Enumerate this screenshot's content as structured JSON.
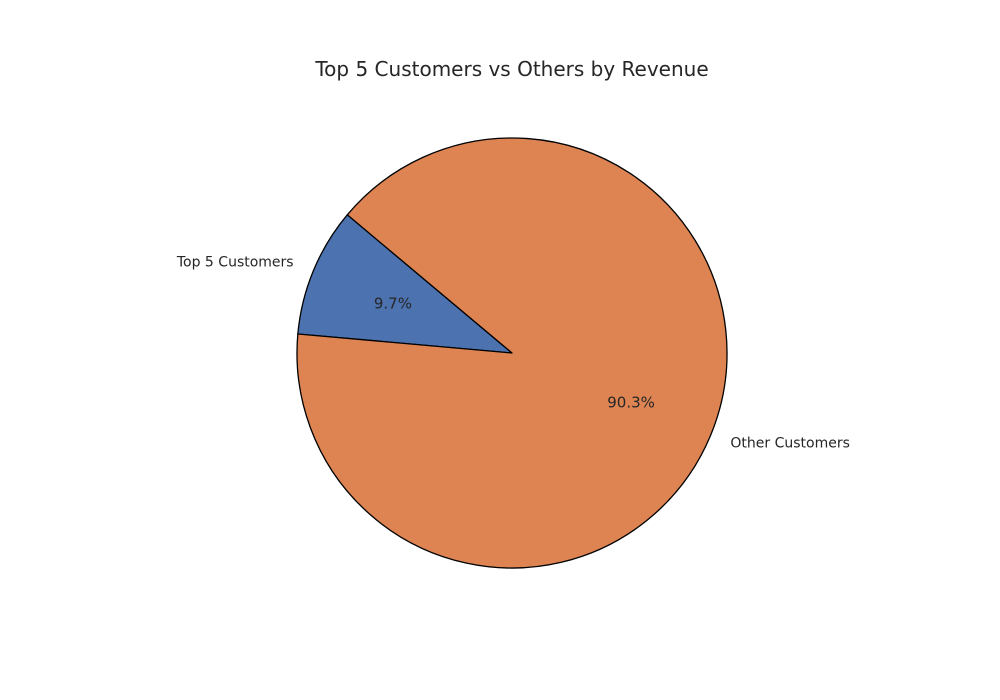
{
  "chart_data": {
    "type": "pie",
    "title": "Top 5 Customers vs Others by Revenue",
    "slices": [
      {
        "label": "Top 5 Customers",
        "value": 9.7,
        "pct_label": "9.7%",
        "color": "#4c72b0"
      },
      {
        "label": "Other Customers",
        "value": 90.3,
        "pct_label": "90.3%",
        "color": "#dd8452"
      }
    ],
    "start_angle_deg": 140,
    "direction": "counterclockwise",
    "edge_color": "#000000",
    "legend": "none"
  }
}
